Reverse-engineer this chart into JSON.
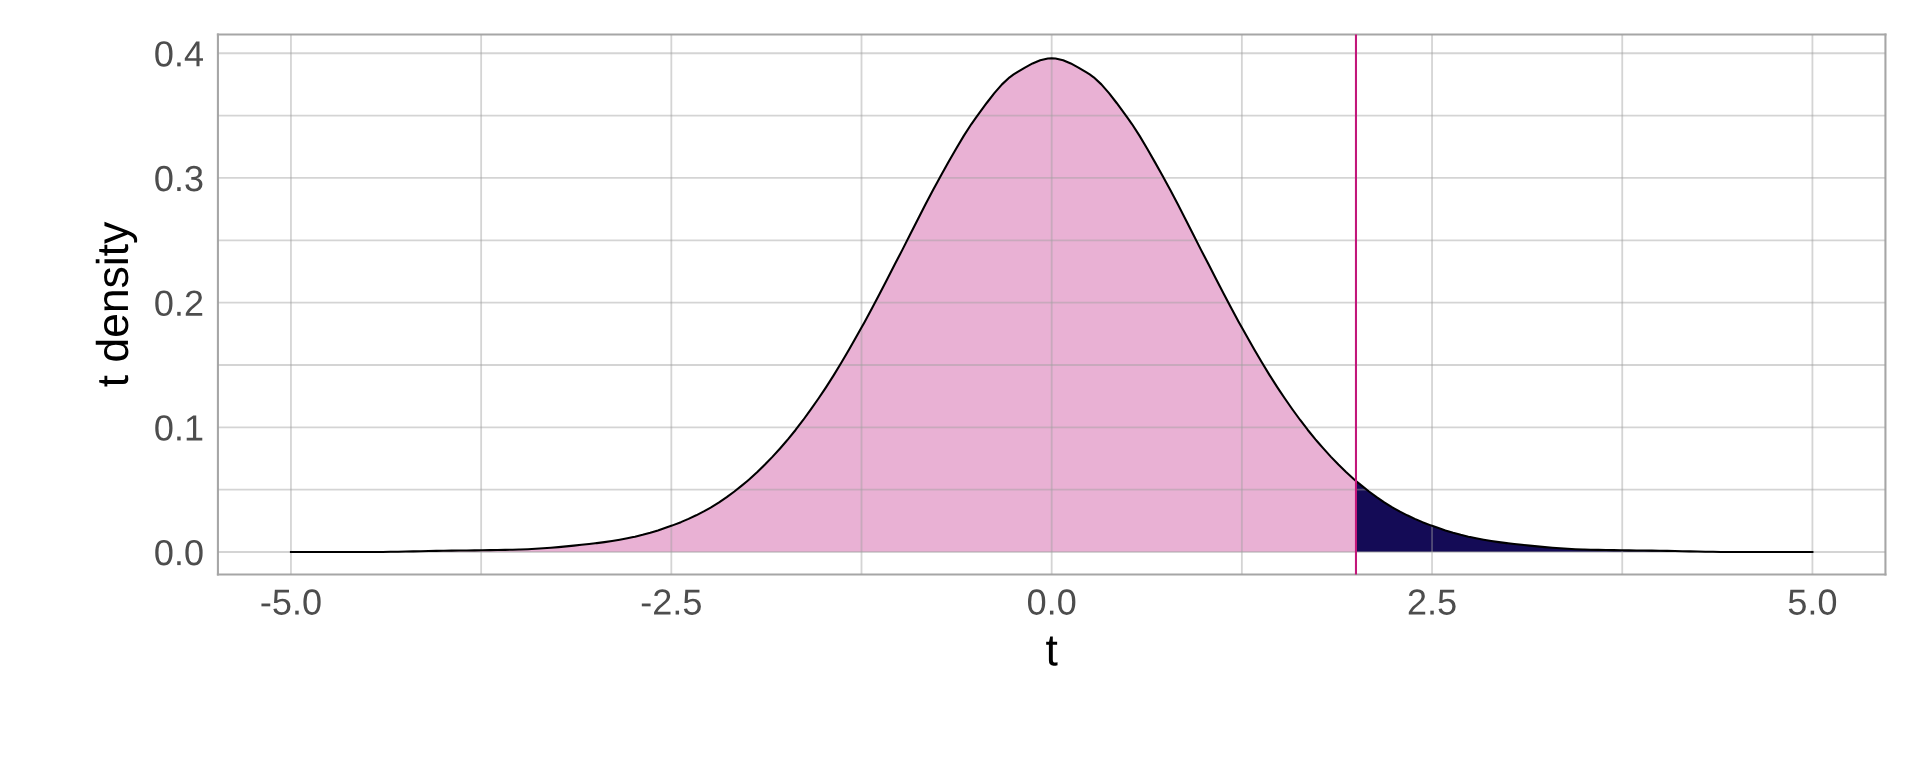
{
  "chart_data": {
    "type": "area",
    "xlabel": "t",
    "ylabel": "t density",
    "xlim": [
      -5.48,
      5.48
    ],
    "ylim": [
      -0.018,
      0.415
    ],
    "xticks": [
      {
        "value": -5,
        "label": "-5.0"
      },
      {
        "value": -3.75,
        "label": null
      },
      {
        "value": -2.5,
        "label": "-2.5"
      },
      {
        "value": -1.25,
        "label": null
      },
      {
        "value": 0,
        "label": "0.0"
      },
      {
        "value": 1.25,
        "label": null
      },
      {
        "value": 2.5,
        "label": "2.5"
      },
      {
        "value": 3.75,
        "label": null
      },
      {
        "value": 5,
        "label": "5.0"
      }
    ],
    "yticks": [
      {
        "value": 0,
        "label": "0.0"
      },
      {
        "value": 0.05,
        "label": null
      },
      {
        "value": 0.1,
        "label": "0.1"
      },
      {
        "value": 0.15,
        "label": null
      },
      {
        "value": 0.2,
        "label": "0.2"
      },
      {
        "value": 0.25,
        "label": null
      },
      {
        "value": 0.3,
        "label": "0.3"
      },
      {
        "value": 0.35,
        "label": null
      },
      {
        "value": 0.4,
        "label": "0.4"
      }
    ],
    "grid": true,
    "ref_lines": [
      {
        "axis": "x",
        "value": 2,
        "color": "#c2177a"
      }
    ],
    "series": [
      {
        "color": "#e9b1d4",
        "x": [
          -5,
          -4.5,
          -4,
          -3.5,
          -3,
          -2.75,
          -2.5,
          -2.25,
          -2,
          -1.75,
          -1.5,
          -1.25,
          -1,
          -0.75,
          -0.5,
          -0.25,
          0,
          0.25,
          0.5,
          0.75,
          1,
          1.25,
          1.5,
          1.75,
          2
        ],
        "values": [
          0.0,
          0.0,
          0.001,
          0.002,
          0.007,
          0.012,
          0.021,
          0.035,
          0.057,
          0.088,
          0.129,
          0.18,
          0.238,
          0.297,
          0.348,
          0.383,
          0.396,
          0.383,
          0.348,
          0.297,
          0.238,
          0.18,
          0.129,
          0.088,
          0.057
        ]
      },
      {
        "color": "#140b56",
        "x": [
          2,
          2.25,
          2.5,
          2.75,
          3,
          3.5,
          4,
          4.5,
          5
        ],
        "values": [
          0.057,
          0.035,
          0.021,
          0.012,
          0.007,
          0.002,
          0.001,
          0.0,
          0.0
        ]
      },
      {
        "type": "line",
        "color": "#000000",
        "x": [
          -5,
          -4.5,
          -4,
          -3.5,
          -3,
          -2.75,
          -2.5,
          -2.25,
          -2,
          -1.75,
          -1.5,
          -1.25,
          -1,
          -0.75,
          -0.5,
          -0.25,
          0,
          0.25,
          0.5,
          0.75,
          1,
          1.25,
          1.5,
          1.75,
          2,
          2.25,
          2.5,
          2.75,
          3,
          3.5,
          4,
          4.5,
          5
        ],
        "values": [
          0.0,
          0.0,
          0.001,
          0.002,
          0.007,
          0.012,
          0.021,
          0.035,
          0.057,
          0.088,
          0.129,
          0.18,
          0.238,
          0.297,
          0.348,
          0.383,
          0.396,
          0.383,
          0.348,
          0.297,
          0.238,
          0.18,
          0.129,
          0.088,
          0.057,
          0.035,
          0.021,
          0.012,
          0.007,
          0.002,
          0.001,
          0.0,
          0.0
        ]
      }
    ]
  }
}
